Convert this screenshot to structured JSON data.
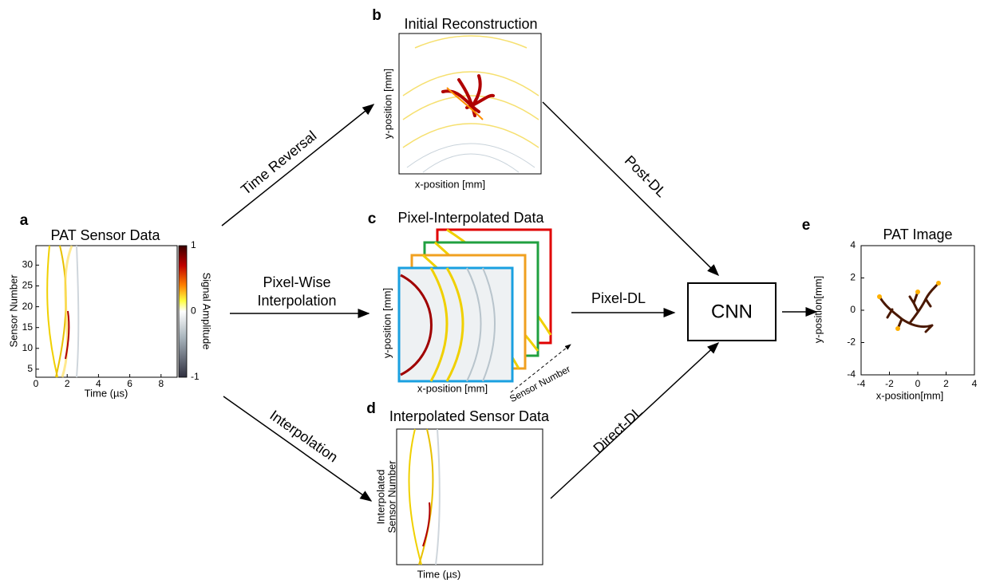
{
  "panels": {
    "a": {
      "letter": "a",
      "title": "PAT Sensor Data",
      "x_label": "Time (µs)",
      "y_label": "Sensor Number",
      "x_ticks": [
        0,
        2,
        4,
        6,
        8
      ],
      "y_ticks": [
        5,
        10,
        15,
        20,
        25,
        30
      ],
      "colorbar_label": "Signal Amplitude",
      "colorbar_ticks": [
        1,
        0,
        -1
      ]
    },
    "b": {
      "letter": "b",
      "title": "Initial Reconstruction",
      "x_label": "x-position [mm]",
      "y_label": "y-position [mm]"
    },
    "c": {
      "letter": "c",
      "title": "Pixel-Interpolated Data",
      "x_label": "x-position [mm]",
      "y_label": "y-position [mm]",
      "stack_label": "Sensor Number"
    },
    "d": {
      "letter": "d",
      "title": "Interpolated Sensor Data",
      "x_label": "Time (µs)",
      "y_label": [
        "Interpolated",
        "Sensor Number"
      ]
    },
    "e": {
      "letter": "e",
      "title": "PAT Image",
      "x_label": "x-position[mm]",
      "y_label": "y-position[mm]",
      "x_ticks": [
        -4,
        -2,
        0,
        2,
        4
      ],
      "y_ticks": [
        4,
        2,
        0,
        -2,
        -4
      ]
    }
  },
  "arrows": {
    "time_reversal": "Time Reversal",
    "pixel_wise": [
      "Pixel-Wise",
      "Interpolation"
    ],
    "interpolation": "Interpolation",
    "post_dl": "Post-DL",
    "pixel_dl": "Pixel-DL",
    "direct_dl": "Direct-DL"
  },
  "cnn": "CNN"
}
